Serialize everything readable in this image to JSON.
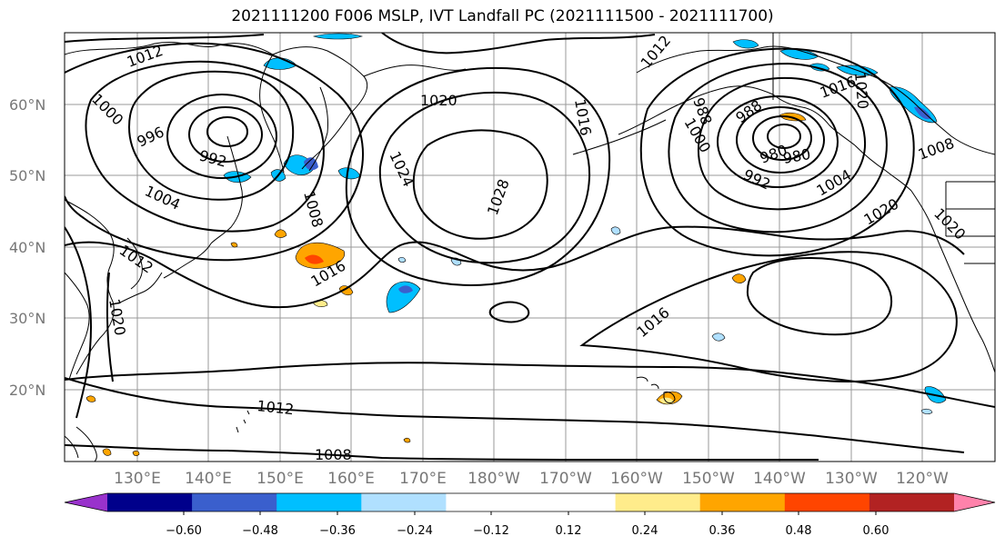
{
  "title": "2021111200 F006 MSLP, IVT Landfall PC (2021111500 - 2021111700)",
  "lat_labels": [
    "60°N",
    "50°N",
    "40°N",
    "30°N",
    "20°N"
  ],
  "lon_labels": [
    "130°E",
    "140°E",
    "150°E",
    "160°E",
    "170°E",
    "180°W",
    "170°W",
    "160°W",
    "150°W",
    "140°W",
    "130°W",
    "120°W"
  ],
  "isobar_labels": [
    "1012",
    "1008",
    "1004",
    "1000",
    "996",
    "992",
    "988",
    "980",
    "1016",
    "1020",
    "1024",
    "1028",
    "1012",
    "1012",
    "1008",
    "1016",
    "1020",
    "1012",
    "1016",
    "1020",
    "1000",
    "992",
    "988",
    "980",
    "1004",
    "1020",
    "1020",
    "1008",
    "1016"
  ],
  "colorbar": {
    "colors": [
      "#9932cc",
      "#00008b",
      "#3a5fcd",
      "#00bfff",
      "#b0e0ff",
      "#ffffff",
      "#ffffff",
      "#ffec8b",
      "#ffa500",
      "#ff4500",
      "#b22222",
      "#ff82ab"
    ],
    "tick_labels": [
      "−0.60",
      "−0.48",
      "−0.36",
      "−0.24",
      "−0.12",
      "0.12",
      "0.24",
      "0.36",
      "0.48",
      "0.60"
    ]
  }
}
